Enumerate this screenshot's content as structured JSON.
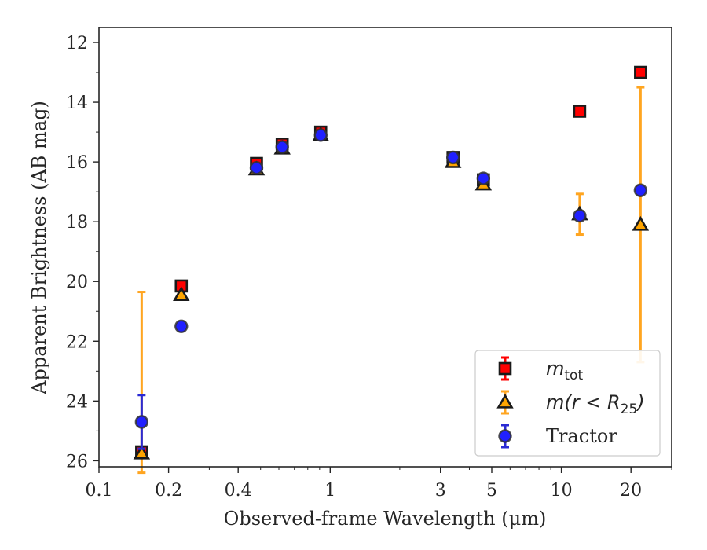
{
  "chart_data": {
    "type": "scatter",
    "xlabel": "Observed-frame Wavelength (μm)",
    "ylabel": "Apparent Brightness (AB mag)",
    "xscale": "log",
    "xlim": [
      0.1,
      30
    ],
    "ylim": [
      26.2,
      11.5
    ],
    "y_inverted": true,
    "x_ticks": [
      {
        "value": 0.1,
        "label": "0.1"
      },
      {
        "value": 0.2,
        "label": "0.2"
      },
      {
        "value": 0.4,
        "label": "0.4"
      },
      {
        "value": 1,
        "label": "1"
      },
      {
        "value": 3,
        "label": "3"
      },
      {
        "value": 5,
        "label": "5"
      },
      {
        "value": 10,
        "label": "10"
      },
      {
        "value": 20,
        "label": "20"
      }
    ],
    "y_ticks": [
      12,
      14,
      16,
      18,
      20,
      22,
      24,
      26
    ],
    "grid": false,
    "legend_position": "bottom-right",
    "series": [
      {
        "name": "m_tot",
        "legend_main": "m",
        "legend_sub": "tot",
        "marker": "square",
        "color": "#ff0000",
        "errorcolor": "#ff0000",
        "points": [
          {
            "x": 0.153,
            "y": 25.7,
            "err": 0
          },
          {
            "x": 0.227,
            "y": 20.15,
            "err": 0.05
          },
          {
            "x": 0.48,
            "y": 16.05,
            "err": 0.1
          },
          {
            "x": 0.62,
            "y": 15.4,
            "err": 0.1
          },
          {
            "x": 0.91,
            "y": 15.0,
            "err": 0.1
          },
          {
            "x": 3.4,
            "y": 15.85,
            "err": 0.05
          },
          {
            "x": 4.6,
            "y": 16.6,
            "err": 0.05
          },
          {
            "x": 12,
            "y": 14.3,
            "err": 0.05
          },
          {
            "x": 22,
            "y": 13.0,
            "err": 0.05
          }
        ]
      },
      {
        "name": "m(r < R_25)",
        "legend_main": "m(r < R",
        "legend_sub": "25",
        "legend_tail": ")",
        "marker": "triangle",
        "color": "#ffa500",
        "errorcolor": "#ffa520",
        "points": [
          {
            "x": 0.153,
            "y": 25.75,
            "err_low": 0.65,
            "err_high": 5.4
          },
          {
            "x": 0.227,
            "y": 20.45,
            "err": 0.05
          },
          {
            "x": 0.48,
            "y": 16.25,
            "err": 0.05
          },
          {
            "x": 0.62,
            "y": 15.55,
            "err": 0.05
          },
          {
            "x": 0.91,
            "y": 15.1,
            "err": 0.05
          },
          {
            "x": 3.4,
            "y": 16.0,
            "err": 0.05
          },
          {
            "x": 4.6,
            "y": 16.75,
            "err": 0.05
          },
          {
            "x": 12,
            "y": 17.75,
            "err": 0.68
          },
          {
            "x": 22,
            "y": 18.1,
            "err_low": 4.6,
            "err_high": 4.6
          }
        ]
      },
      {
        "name": "Tractor",
        "marker": "circle",
        "color": "#2020ff",
        "errorcolor": "#2a2ad4",
        "points": [
          {
            "x": 0.153,
            "y": 24.7,
            "err": 0.9
          },
          {
            "x": 0.227,
            "y": 21.5,
            "err": 0.03
          },
          {
            "x": 0.48,
            "y": 16.2,
            "err": 0.03
          },
          {
            "x": 0.62,
            "y": 15.5,
            "err": 0.03
          },
          {
            "x": 0.91,
            "y": 15.1,
            "err": 0.03
          },
          {
            "x": 3.4,
            "y": 15.85,
            "err": 0.03
          },
          {
            "x": 4.6,
            "y": 16.55,
            "err": 0.03
          },
          {
            "x": 12,
            "y": 17.8,
            "err": 0.05
          },
          {
            "x": 22,
            "y": 16.95,
            "err": 0.05
          }
        ]
      }
    ]
  }
}
